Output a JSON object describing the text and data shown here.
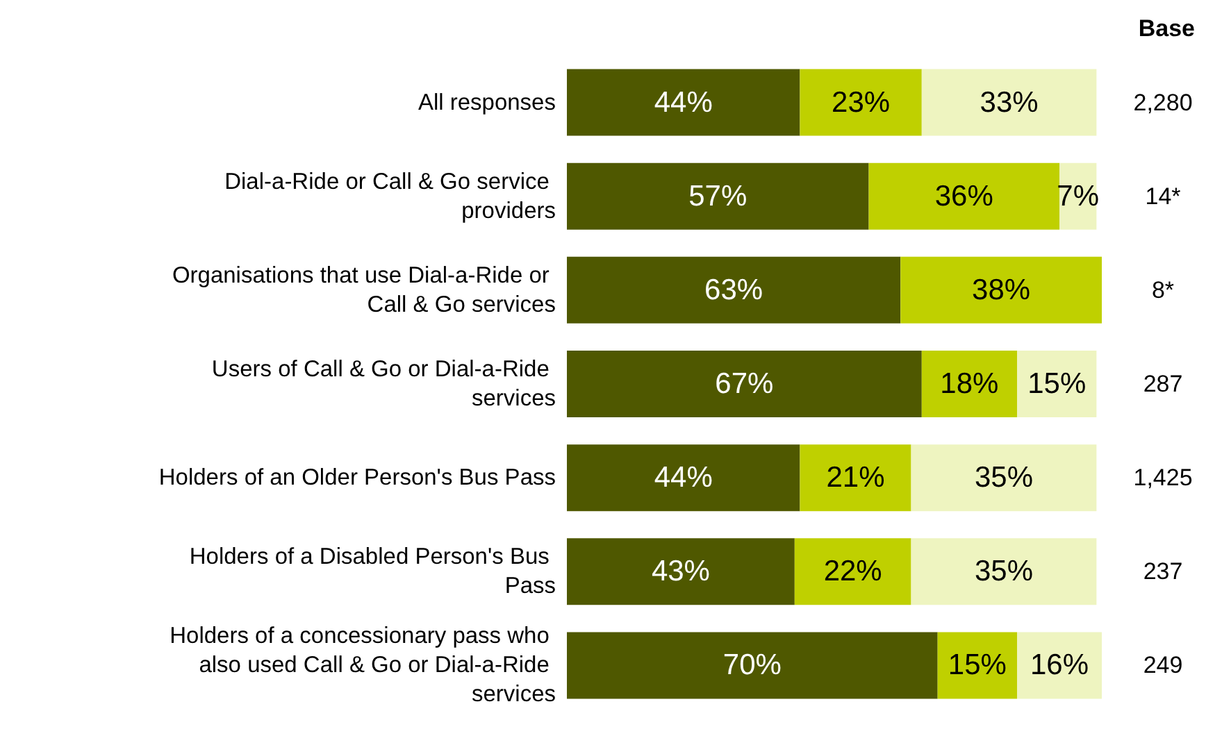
{
  "chart_data": {
    "type": "bar",
    "orientation": "horizontal",
    "stacked": true,
    "tick_labels": "y",
    "categories": [
      "All responses",
      "Dial-a-Ride or Call & Go service providers",
      "Organisations that use Dial-a-Ride or Call & Go services",
      "Users of Call & Go or Dial-a-Ride services",
      "Holders of an Older Person's Bus Pass",
      "Holders of a Disabled Person's Bus Pass",
      "Holders of a concessionary pass who also used Call & Go or Dial-a-Ride services"
    ],
    "series": [
      {
        "color": "#4f5800",
        "values": [
          44,
          57,
          63,
          67,
          44,
          43,
          70
        ],
        "value_labels": [
          "44%",
          "57%",
          "63%",
          "67%",
          "44%",
          "43%",
          "70%"
        ]
      },
      {
        "color": "#bfd000",
        "values": [
          23,
          36,
          38,
          18,
          21,
          22,
          15
        ],
        "value_labels": [
          "23%",
          "36%",
          "38%",
          "18%",
          "21%",
          "22%",
          "15%"
        ]
      },
      {
        "color": "#eef4c0",
        "values": [
          33,
          7,
          null,
          15,
          35,
          35,
          16
        ],
        "value_labels": [
          "33%",
          "7%",
          null,
          "15%",
          "35%",
          "35%",
          "16%"
        ]
      }
    ],
    "annotations": [
      "Base",
      "2,280",
      "14*",
      "8*",
      "287",
      "1,425",
      "237",
      "249"
    ]
  }
}
